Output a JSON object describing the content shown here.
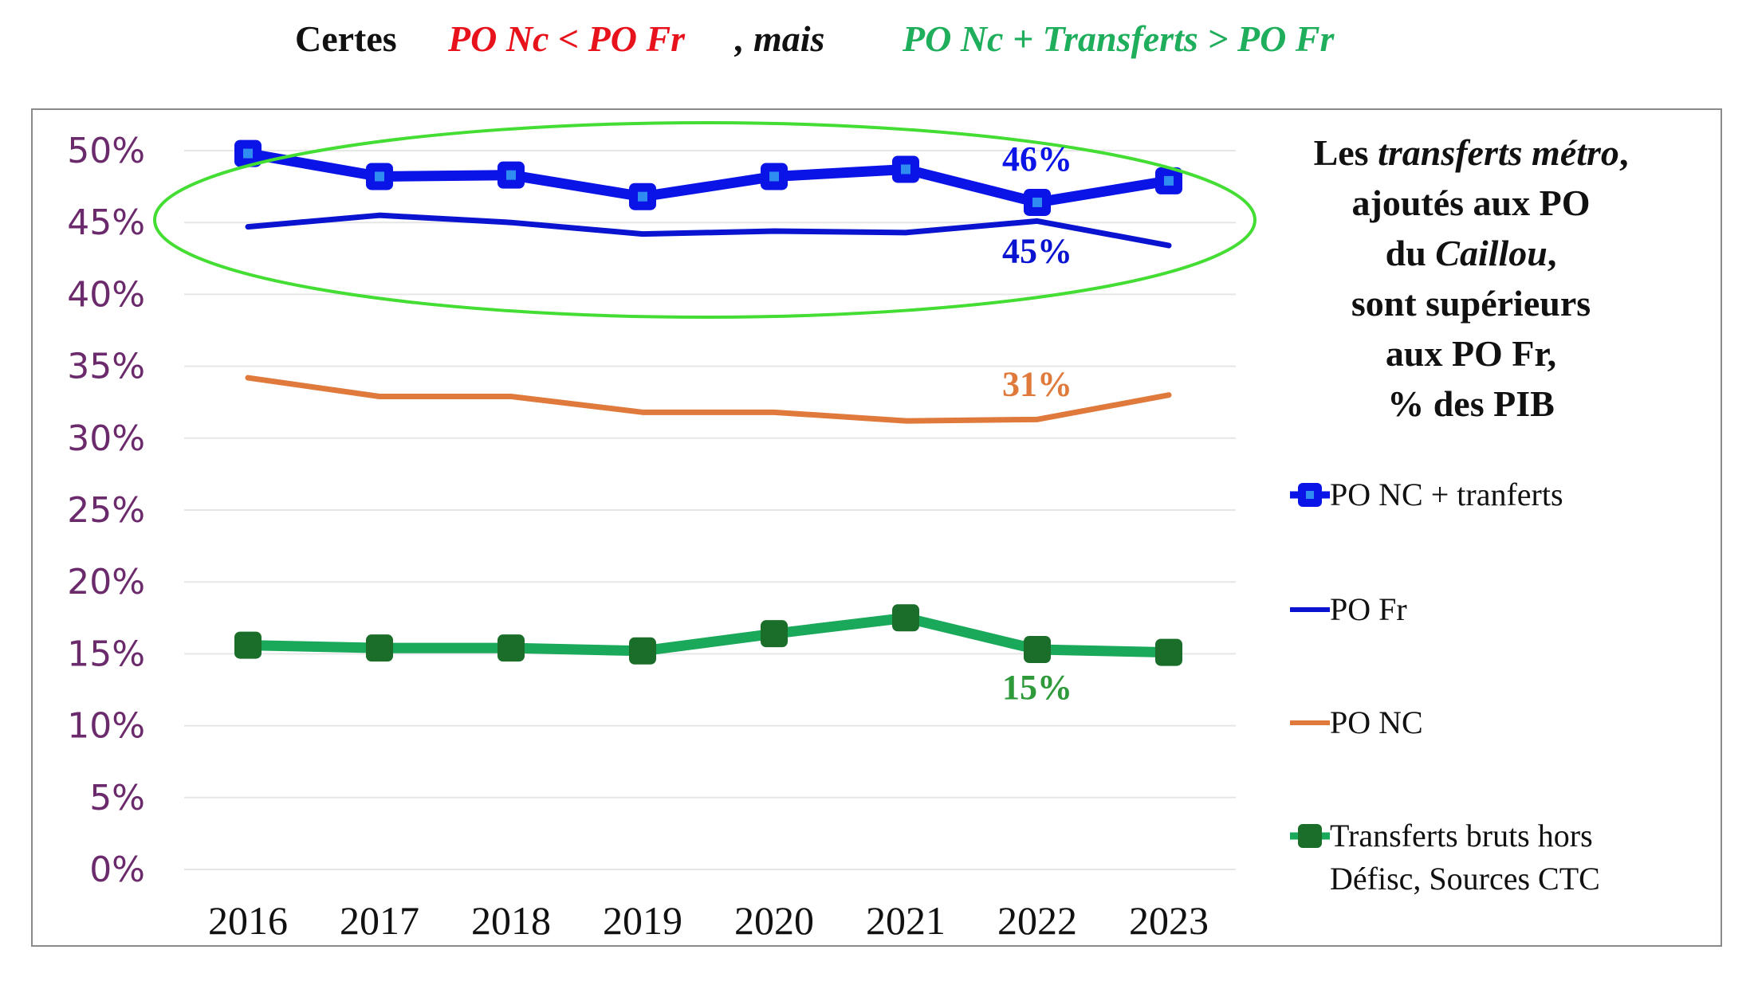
{
  "title": {
    "part1": "Certes",
    "part2": "PO Nc < PO Fr",
    "part3": ", mais",
    "part4": "PO Nc + Transferts > PO Fr"
  },
  "side_note": {
    "line1_a": "Les ",
    "line1_b": "transferts métro",
    "line1_c": ",",
    "line2": "ajoutés aux PO",
    "line3_a": "du ",
    "line3_b": "Caillou",
    "line3_c": ",",
    "line4": "sont supérieurs",
    "line5": "aux PO Fr,",
    "line6": "% des PIB"
  },
  "colors": {
    "po_nc_transferts": "#0a14e6",
    "po_nc_transferts_marker_inner": "#2f8cf0",
    "po_fr": "#0a14d0",
    "po_nc": "#e07a3c",
    "transferts": "#1aa85a",
    "transferts_marker": "#1a6e2a",
    "ellipse": "#44dd33",
    "axis_label": "#6b2a6b",
    "grid": "#e6e6e6"
  },
  "chart_data": {
    "type": "line",
    "title": "Certes PO Nc < PO Fr, mais PO Nc + Transferts > PO Fr",
    "xlabel": "",
    "ylabel": "",
    "categories": [
      "2016",
      "2017",
      "2018",
      "2019",
      "2020",
      "2021",
      "2022",
      "2023"
    ],
    "ylim": [
      0,
      50
    ],
    "yticks": [
      "0%",
      "5%",
      "10%",
      "15%",
      "20%",
      "25%",
      "30%",
      "35%",
      "40%",
      "45%",
      "50%"
    ],
    "grid": true,
    "legend_position": "right",
    "series": [
      {
        "name": "PO NC + tranferts",
        "values": [
          49.8,
          48.2,
          48.3,
          46.8,
          48.2,
          48.7,
          46.4,
          47.9
        ],
        "markers": true,
        "data_label": {
          "index": 6,
          "text": "46%"
        }
      },
      {
        "name": "PO Fr",
        "values": [
          44.7,
          45.5,
          45.0,
          44.2,
          44.4,
          44.3,
          45.1,
          43.4
        ],
        "markers": false,
        "data_label": {
          "index": 6,
          "text": "45%"
        }
      },
      {
        "name": "PO NC",
        "values": [
          34.2,
          32.9,
          32.9,
          31.8,
          31.8,
          31.2,
          31.3,
          33.0
        ],
        "markers": false,
        "data_label": {
          "index": 6,
          "text": "31%"
        }
      },
      {
        "name": "Transferts bruts hors Défisc, Sources CTC",
        "values": [
          15.6,
          15.4,
          15.4,
          15.2,
          16.4,
          17.5,
          15.3,
          15.1
        ],
        "markers": true,
        "data_label": {
          "index": 6,
          "text": "15%"
        }
      }
    ],
    "annotations": [
      "green ellipse highlighting PO NC + tranferts and PO Fr lines"
    ]
  },
  "legend": {
    "items": [
      {
        "label": "PO NC + tranferts"
      },
      {
        "label": "PO Fr"
      },
      {
        "label": "PO NC"
      },
      {
        "label_line1": "Transferts bruts hors",
        "label_line2": "Défisc, Sources CTC"
      }
    ]
  }
}
